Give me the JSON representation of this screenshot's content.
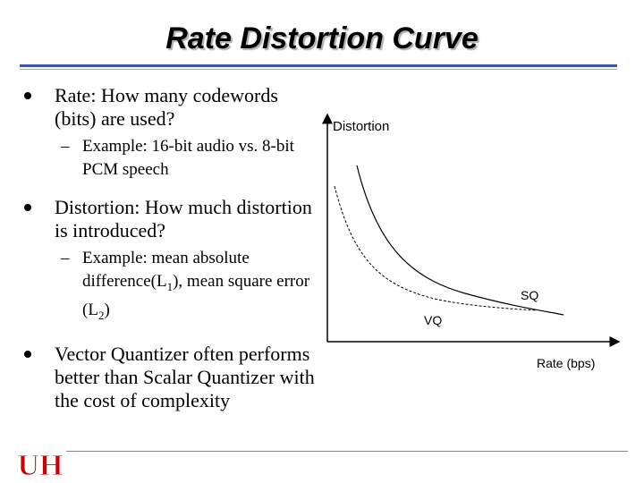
{
  "title": "Rate Distortion Curve",
  "bullets": [
    {
      "text": "Rate: How many codewords (bits) are used?",
      "sub": [
        "Example: 16-bit audio vs. 8-bit PCM speech"
      ]
    },
    {
      "text": "Distortion: How much distortion is introduced?",
      "sub": [
        "Example: mean absolute difference(L1), mean square error (L2)"
      ]
    },
    {
      "text": "Vector Quantizer often performs better than Scalar Quantizer with the cost of complexity",
      "sub": []
    }
  ],
  "sub_dash": "–",
  "diagram": {
    "y_label": "Distortion",
    "x_label": "Rate (bps)",
    "sq_label": "SQ",
    "vq_label": "VQ"
  },
  "logo": {
    "letters": "UH",
    "color": "#cc0000"
  }
}
